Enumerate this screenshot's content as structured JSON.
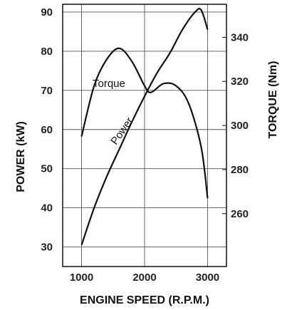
{
  "chart_data": {
    "type": "line",
    "xlabel": "ENGINE SPEED (R.P.M.)",
    "ylabel_left": "POWER (kW)",
    "ylabel_right": "TORQUE (Nm)",
    "xlim": [
      700,
      3300
    ],
    "ylim_left": [
      25,
      92
    ],
    "ylim_right": [
      236,
      355
    ],
    "x_ticks": [
      1000,
      2000,
      3000
    ],
    "y_ticks_left": [
      30,
      40,
      50,
      60,
      70,
      80,
      90
    ],
    "y_ticks_right": [
      260,
      280,
      300,
      320,
      340
    ],
    "grid": true,
    "series": [
      {
        "name": "Torque",
        "axis": "right",
        "color": "#111111",
        "points": [
          [
            1000,
            295
          ],
          [
            1200,
            318
          ],
          [
            1400,
            330
          ],
          [
            1600,
            335
          ],
          [
            1800,
            329
          ],
          [
            2000,
            318
          ],
          [
            2100,
            315
          ],
          [
            2300,
            319
          ],
          [
            2500,
            318
          ],
          [
            2700,
            310
          ],
          [
            2900,
            290
          ],
          [
            3000,
            267
          ]
        ]
      },
      {
        "name": "Power",
        "axis": "left",
        "color": "#111111",
        "points": [
          [
            1000,
            30.5
          ],
          [
            1200,
            40.0
          ],
          [
            1400,
            48.0
          ],
          [
            1600,
            55.0
          ],
          [
            1800,
            62.0
          ],
          [
            2000,
            68.5
          ],
          [
            2200,
            74.5
          ],
          [
            2400,
            79.5
          ],
          [
            2600,
            85.5
          ],
          [
            2800,
            90.0
          ],
          [
            2900,
            90.5
          ],
          [
            3000,
            85.5
          ]
        ]
      }
    ]
  }
}
